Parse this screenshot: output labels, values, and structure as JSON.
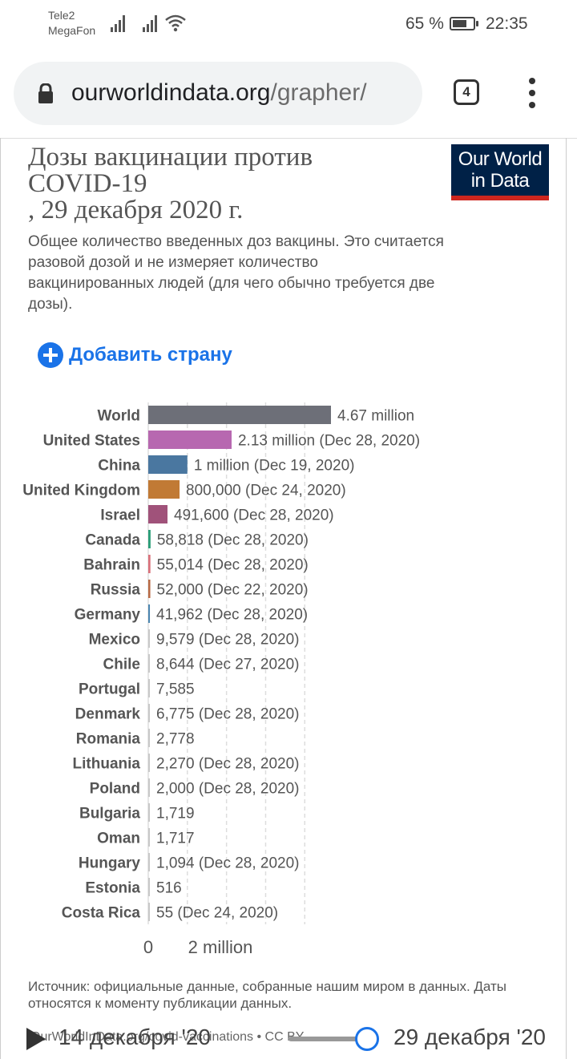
{
  "status_bar": {
    "carrier_1": "Tele2",
    "carrier_2": "MegaFon",
    "battery": "65 %",
    "time": "22:35"
  },
  "browser": {
    "url_host": "ourworldindata.org",
    "url_path": "/grapher/",
    "tab_count": "4"
  },
  "header": {
    "title_line1": "Дозы вакцинации против",
    "title_line2": "COVID-19",
    "title_line3": ", 29 декабря 2020 г.",
    "subtitle": "Общее количество введенных доз вакцины. Это считается разовой дозой и не измеряет количество вакцинированных людей (для чего обычно требуется две дозы).",
    "logo_line1": "Our World",
    "logo_line2": "in Data",
    "add_country": "Добавить страну"
  },
  "chart_data": {
    "type": "bar",
    "orientation": "horizontal",
    "categories": [
      "World",
      "United States",
      "China",
      "United Kingdom",
      "Israel",
      "Canada",
      "Bahrain",
      "Russia",
      "Germany",
      "Mexico",
      "Chile",
      "Portugal",
      "Denmark",
      "Romania",
      "Lithuania",
      "Poland",
      "Bulgaria",
      "Oman",
      "Hungary",
      "Estonia",
      "Costa Rica"
    ],
    "values": [
      4670000,
      2130000,
      1000000,
      800000,
      491600,
      58818,
      55014,
      52000,
      41962,
      9579,
      8644,
      7585,
      6775,
      2778,
      2270,
      2000,
      1719,
      1717,
      1094,
      516,
      55
    ],
    "value_labels": [
      "4.67 million",
      "2.13 million (Dec 28, 2020)",
      "1 million (Dec 19, 2020)",
      "800,000 (Dec 24, 2020)",
      "491,600 (Dec 28, 2020)",
      "58,818 (Dec 28, 2020)",
      "55,014 (Dec 28, 2020)",
      "52,000 (Dec 22, 2020)",
      "41,962 (Dec 28, 2020)",
      "9,579 (Dec 28, 2020)",
      "8,644 (Dec 27, 2020)",
      "7,585",
      "6,775 (Dec 28, 2020)",
      "2,778",
      "2,270 (Dec 28, 2020)",
      "2,000 (Dec 28, 2020)",
      "1,719",
      "1,717",
      "1,094 (Dec 28, 2020)",
      "516",
      "55 (Dec 24, 2020)"
    ],
    "colors": [
      "#6d6f78",
      "#b768b0",
      "#4a77a0",
      "#c17a35",
      "#a0527a",
      "#2a9d78",
      "#d9707a",
      "#b86a45",
      "#4b86b0",
      "#c8c8c8",
      "#c8c8c8",
      "#c8c8c8",
      "#c8c8c8",
      "#c8c8c8",
      "#c8c8c8",
      "#c8c8c8",
      "#c8c8c8",
      "#c8c8c8",
      "#c8c8c8",
      "#c8c8c8",
      "#c8c8c8"
    ],
    "x_ticks": [
      0,
      2000000
    ],
    "x_tick_labels": [
      "0",
      "2 million"
    ],
    "x_gridlines": [
      0,
      1000000,
      2000000,
      3000000,
      4000000
    ],
    "xlim": [
      0,
      4670000
    ],
    "grid": true
  },
  "footer": {
    "source": "Источник: официальные данные, собранные нашим миром в данных. Даты относятся к моменту публикации данных.",
    "link": "OurWorldInData.org/covid-vaccinations • CC BY"
  },
  "timeline": {
    "start_label": "14 декабря '20",
    "end_label": "29 декабря '20"
  }
}
